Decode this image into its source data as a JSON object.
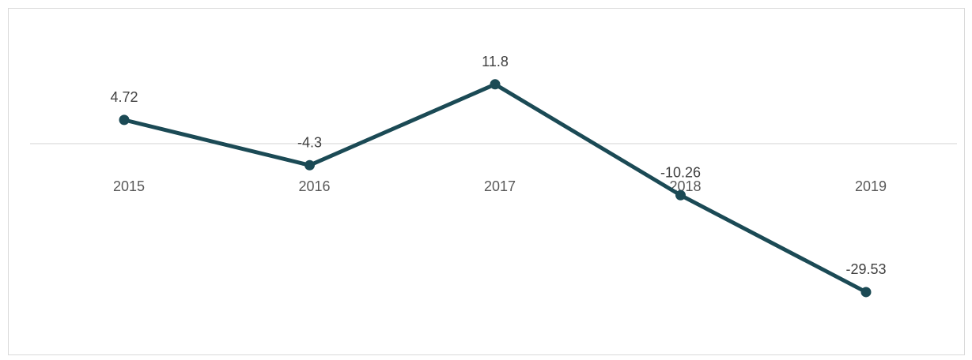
{
  "chart_data": {
    "type": "line",
    "categories": [
      "2015",
      "2016",
      "2017",
      "2018",
      "2019"
    ],
    "series": [
      {
        "values": [
          4.72,
          -4.3,
          11.8,
          -10.26,
          -29.53
        ]
      }
    ],
    "data_labels": [
      "4.72",
      "-4.3",
      "11.8",
      "-10.26",
      "-29.53"
    ],
    "title": "",
    "xlabel": "",
    "ylabel": "",
    "ylim": [
      -40,
      20
    ],
    "grid": false,
    "line_color": "#1b4a55",
    "axis_color": "#d9d9d9",
    "label_color": "#404040"
  }
}
